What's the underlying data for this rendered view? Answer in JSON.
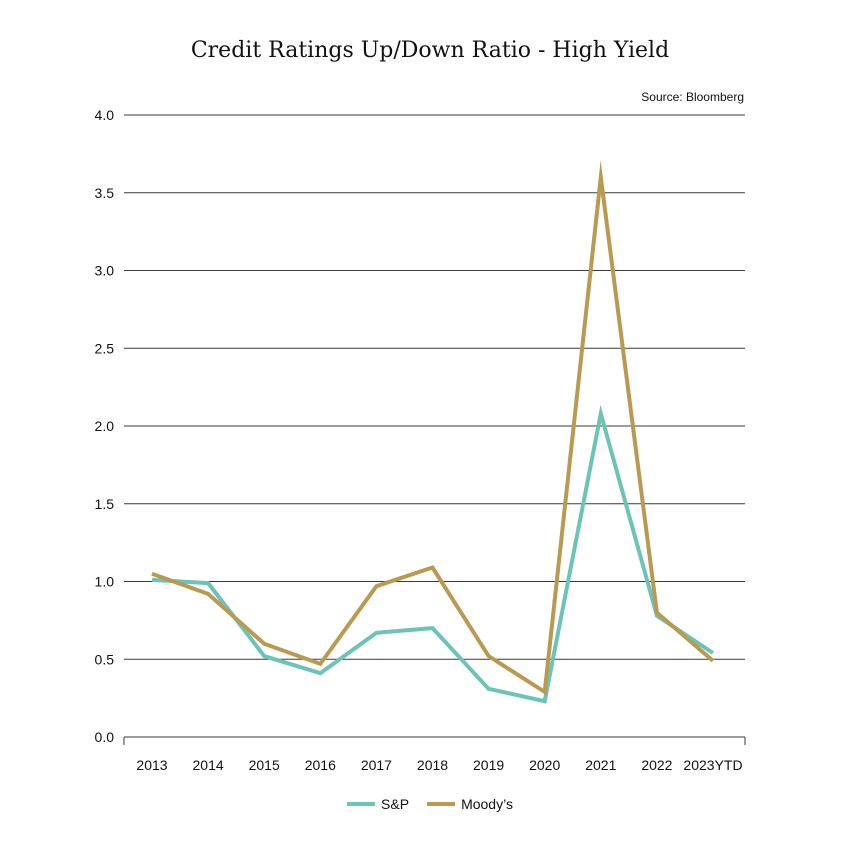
{
  "chart_data": {
    "type": "line",
    "title": "Credit Ratings Up/Down Ratio - High Yield",
    "source": "Source: Bloomberg",
    "categories": [
      "2013",
      "2014",
      "2015",
      "2016",
      "2017",
      "2018",
      "2019",
      "2020",
      "2021",
      "2022",
      "2023YTD"
    ],
    "series": [
      {
        "name": "S&P",
        "color": "#6cc3b8",
        "values": [
          1.01,
          0.99,
          0.52,
          0.41,
          0.67,
          0.7,
          0.31,
          0.23,
          2.08,
          0.78,
          0.54
        ]
      },
      {
        "name": "Moody’s",
        "color": "#b99a50",
        "values": [
          1.05,
          0.92,
          0.6,
          0.47,
          0.97,
          1.09,
          0.52,
          0.29,
          3.6,
          0.8,
          0.49
        ]
      }
    ],
    "ylim": [
      0,
      4
    ],
    "yticks": [
      "0.0",
      "0.5",
      "1.0",
      "1.5",
      "2.0",
      "2.5",
      "3.0",
      "3.5",
      "4.0"
    ],
    "ytick_values": [
      0,
      0.5,
      1,
      1.5,
      2,
      2.5,
      3,
      3.5,
      4
    ],
    "grid": true,
    "legend": "bottom-center"
  }
}
